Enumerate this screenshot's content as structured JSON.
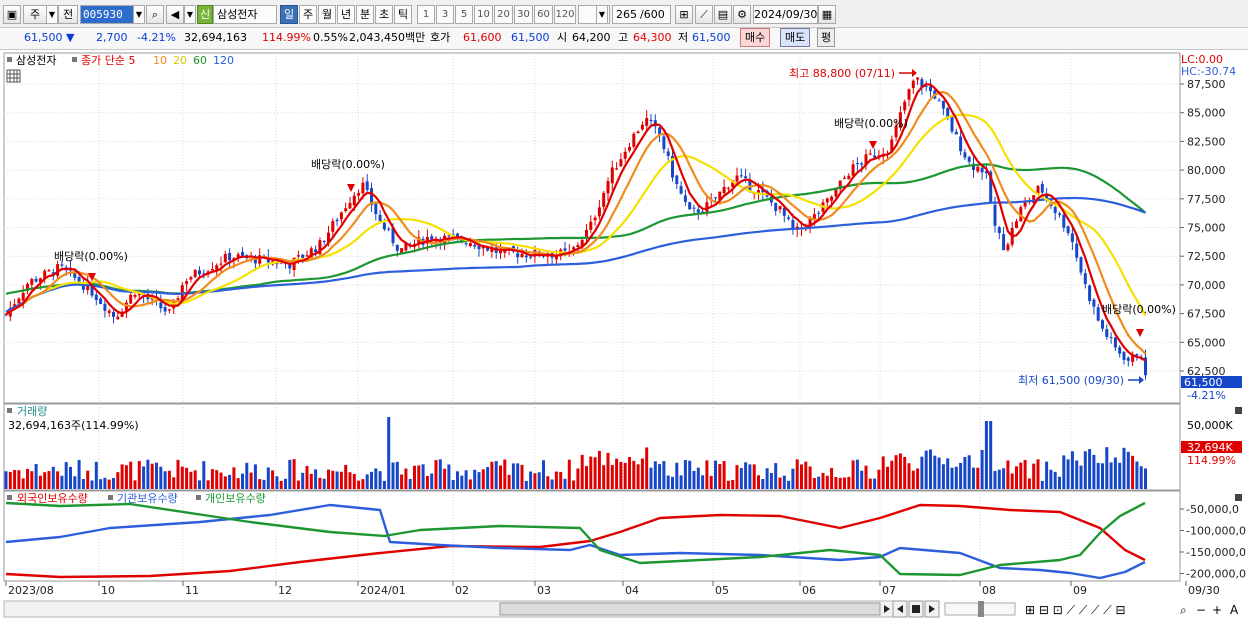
{
  "toolbar": {
    "market_label": "주",
    "all_label": "전",
    "stock_code": "005930",
    "new_badge": "신",
    "stock_name": "삼성전자",
    "periods": [
      "일",
      "주",
      "월",
      "년",
      "분",
      "초",
      "틱"
    ],
    "active_period": "일",
    "intervals": [
      "1",
      "3",
      "5",
      "10",
      "20",
      "30",
      "60",
      "120"
    ],
    "count": "265",
    "count_total": "/600",
    "date": "2024/09/30"
  },
  "quote": {
    "price": "61,500",
    "change": "2,700",
    "change_pct": "-4.21%",
    "volume": "32,694,163",
    "volume_ratio": "114.99%",
    "turnover_pct": "0.55%",
    "amount": "2,043,450백만",
    "bid_ask_label": "호가",
    "ask": "61,600",
    "bid": "61,500",
    "open_label": "시",
    "open": "64,200",
    "high_label": "고",
    "high": "64,300",
    "low_label": "저",
    "low": "61,500",
    "buy_label": "매수",
    "sell_label": "매도",
    "even_label": "평"
  },
  "price_panel": {
    "stock_label": "삼성전자",
    "legend": [
      {
        "name": "종가 단순 5",
        "color": "#e10000"
      },
      {
        "name": "10",
        "color": "#f08c1e"
      },
      {
        "name": "20",
        "color": "#f5e100"
      },
      {
        "name": "60",
        "color": "#1e9632"
      },
      {
        "name": "120",
        "color": "#2d5fdc"
      }
    ],
    "lc": "LC:0.00",
    "hc": "HC:-30.74",
    "y_ticks": [
      "87,500",
      "85,000",
      "82,500",
      "80,000",
      "77,500",
      "75,000",
      "72,500",
      "70,000",
      "67,500",
      "65,000",
      "62,500"
    ],
    "last_price": "61,500",
    "last_change": "-4.21%",
    "high_annotation": "최고 88,800 (07/11)",
    "low_annotation": "최저 61,500 (09/30)",
    "dividend_label": "배당락(0.00%)"
  },
  "volume_panel": {
    "title": "거래량",
    "value": "32,694,163주(114.99%)",
    "y_tick": "50,000K",
    "last_value": "32,694K",
    "last_ratio": "114.99%"
  },
  "holding_panel": {
    "legend": [
      {
        "name": "외국인보유수량",
        "color": "#e10000"
      },
      {
        "name": "기관보유수량",
        "color": "#2d5fdc"
      },
      {
        "name": "개인보유수량",
        "color": "#1e9632"
      }
    ],
    "y_ticks": [
      "-50,000,0",
      "-100,000,0",
      "-150,000,0",
      "-200,000,0"
    ]
  },
  "x_axis": {
    "labels": [
      "2023/08",
      "10",
      "11",
      "12",
      "2024/01",
      "02",
      "03",
      "04",
      "05",
      "06",
      "07",
      "08",
      "09",
      "09/30"
    ]
  },
  "chart_data": {
    "type": "line",
    "price_unit": "KRW",
    "moving_averages": [
      "5",
      "10",
      "20",
      "60",
      "120"
    ],
    "price_ylim": [
      61500,
      88800
    ],
    "x": [
      "2023/08",
      "10",
      "11",
      "12",
      "2024/01",
      "02",
      "03",
      "04",
      "05",
      "06",
      "07",
      "08",
      "09",
      "09/30"
    ],
    "series": [
      {
        "name": "종가 단순 5",
        "values": [
          67500,
          69500,
          67500,
          72500,
          75500,
          74000,
          73000,
          84500,
          76500,
          76000,
          88000,
          72500,
          64500,
          61500
        ]
      },
      {
        "name": "120",
        "values": [
          69000,
          69800,
          69700,
          70300,
          70800,
          71300,
          72200,
          74200,
          75500,
          76800,
          78800,
          79300,
          78800,
          77500
        ]
      }
    ],
    "annotations": [
      "최고 88,800 (07/11)",
      "최저 61,500 (09/30)",
      "배당락(0.00%)"
    ]
  },
  "icons": {
    "market_dropdown": "chevron-down-icon",
    "search": "search-icon",
    "speaker": "speaker-icon",
    "settings": "gear-icon",
    "save": "save-icon",
    "zoom": "magnifier-icon"
  }
}
